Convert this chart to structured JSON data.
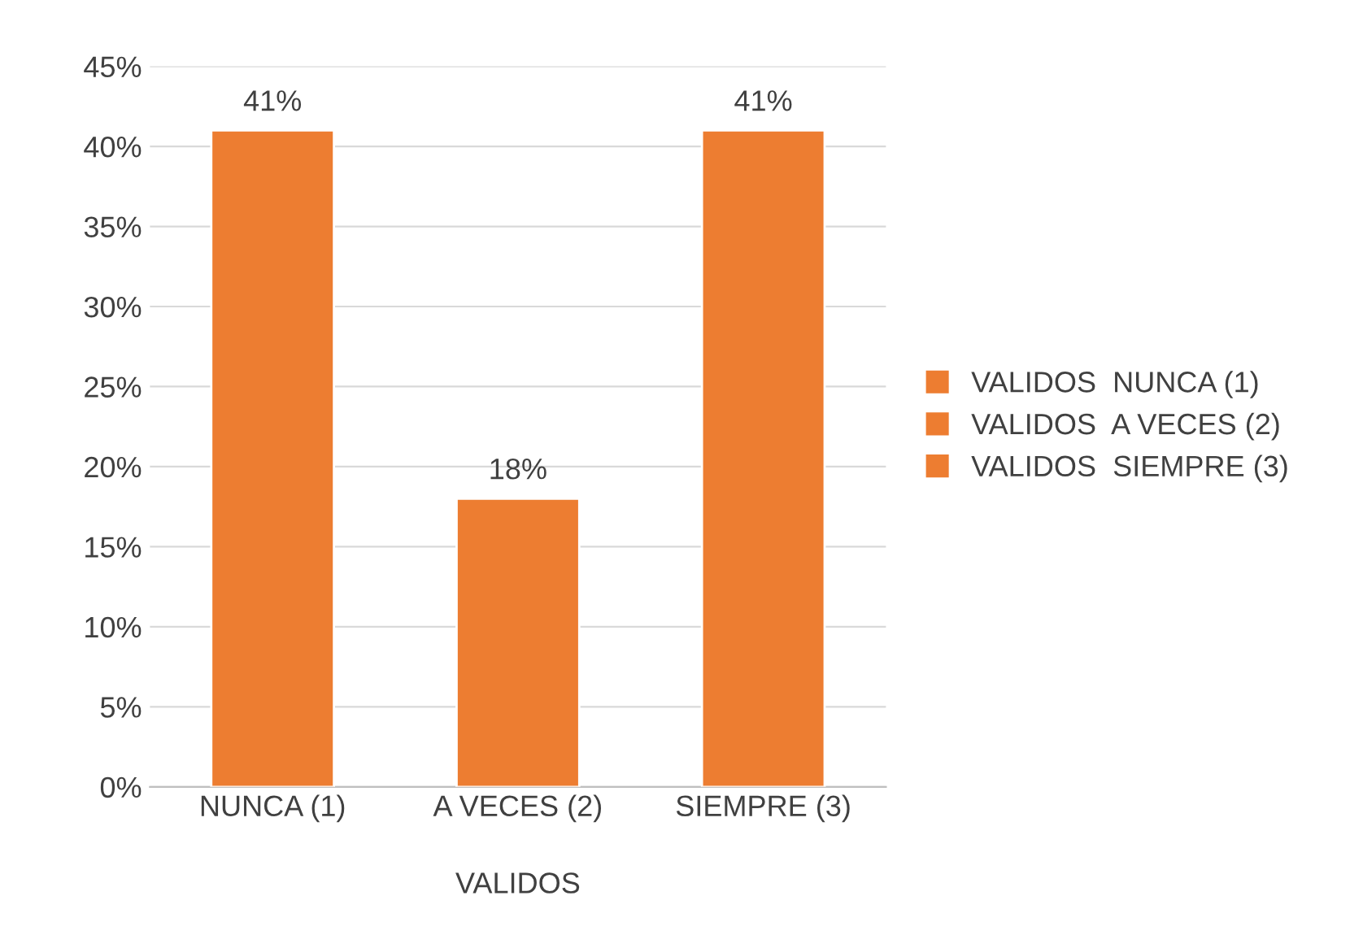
{
  "chart_data": {
    "type": "bar",
    "xlabel": "VALIDOS",
    "categories": [
      "NUNCA (1)",
      "A VECES (2)",
      "SIEMPRE (3)"
    ],
    "stacked": true,
    "series": [
      {
        "name": "VALIDOS  NUNCA (1)",
        "color": "#ed7d31",
        "values": [
          41,
          null,
          null
        ],
        "value_labels": [
          "41%",
          null,
          null
        ]
      },
      {
        "name": "VALIDOS  A VECES (2)",
        "color": "#ed7d31",
        "values": [
          null,
          18,
          null
        ],
        "value_labels": [
          null,
          "18%",
          null
        ]
      },
      {
        "name": "VALIDOS  SIEMPRE (3)",
        "color": "#ed7d31",
        "values": [
          null,
          null,
          41
        ],
        "value_labels": [
          null,
          null,
          "41%"
        ]
      }
    ],
    "ylim": [
      0,
      45
    ],
    "yticks": [
      {
        "value": 0,
        "label": "0%"
      },
      {
        "value": 5,
        "label": "5%"
      },
      {
        "value": 10,
        "label": "10%"
      },
      {
        "value": 15,
        "label": "15%"
      },
      {
        "value": 20,
        "label": "20%"
      },
      {
        "value": 25,
        "label": "25%"
      },
      {
        "value": 30,
        "label": "30%"
      },
      {
        "value": 35,
        "label": "35%"
      },
      {
        "value": 40,
        "label": "40%"
      },
      {
        "value": 45,
        "label": "45%"
      }
    ],
    "grid": "y",
    "legend": "right"
  }
}
